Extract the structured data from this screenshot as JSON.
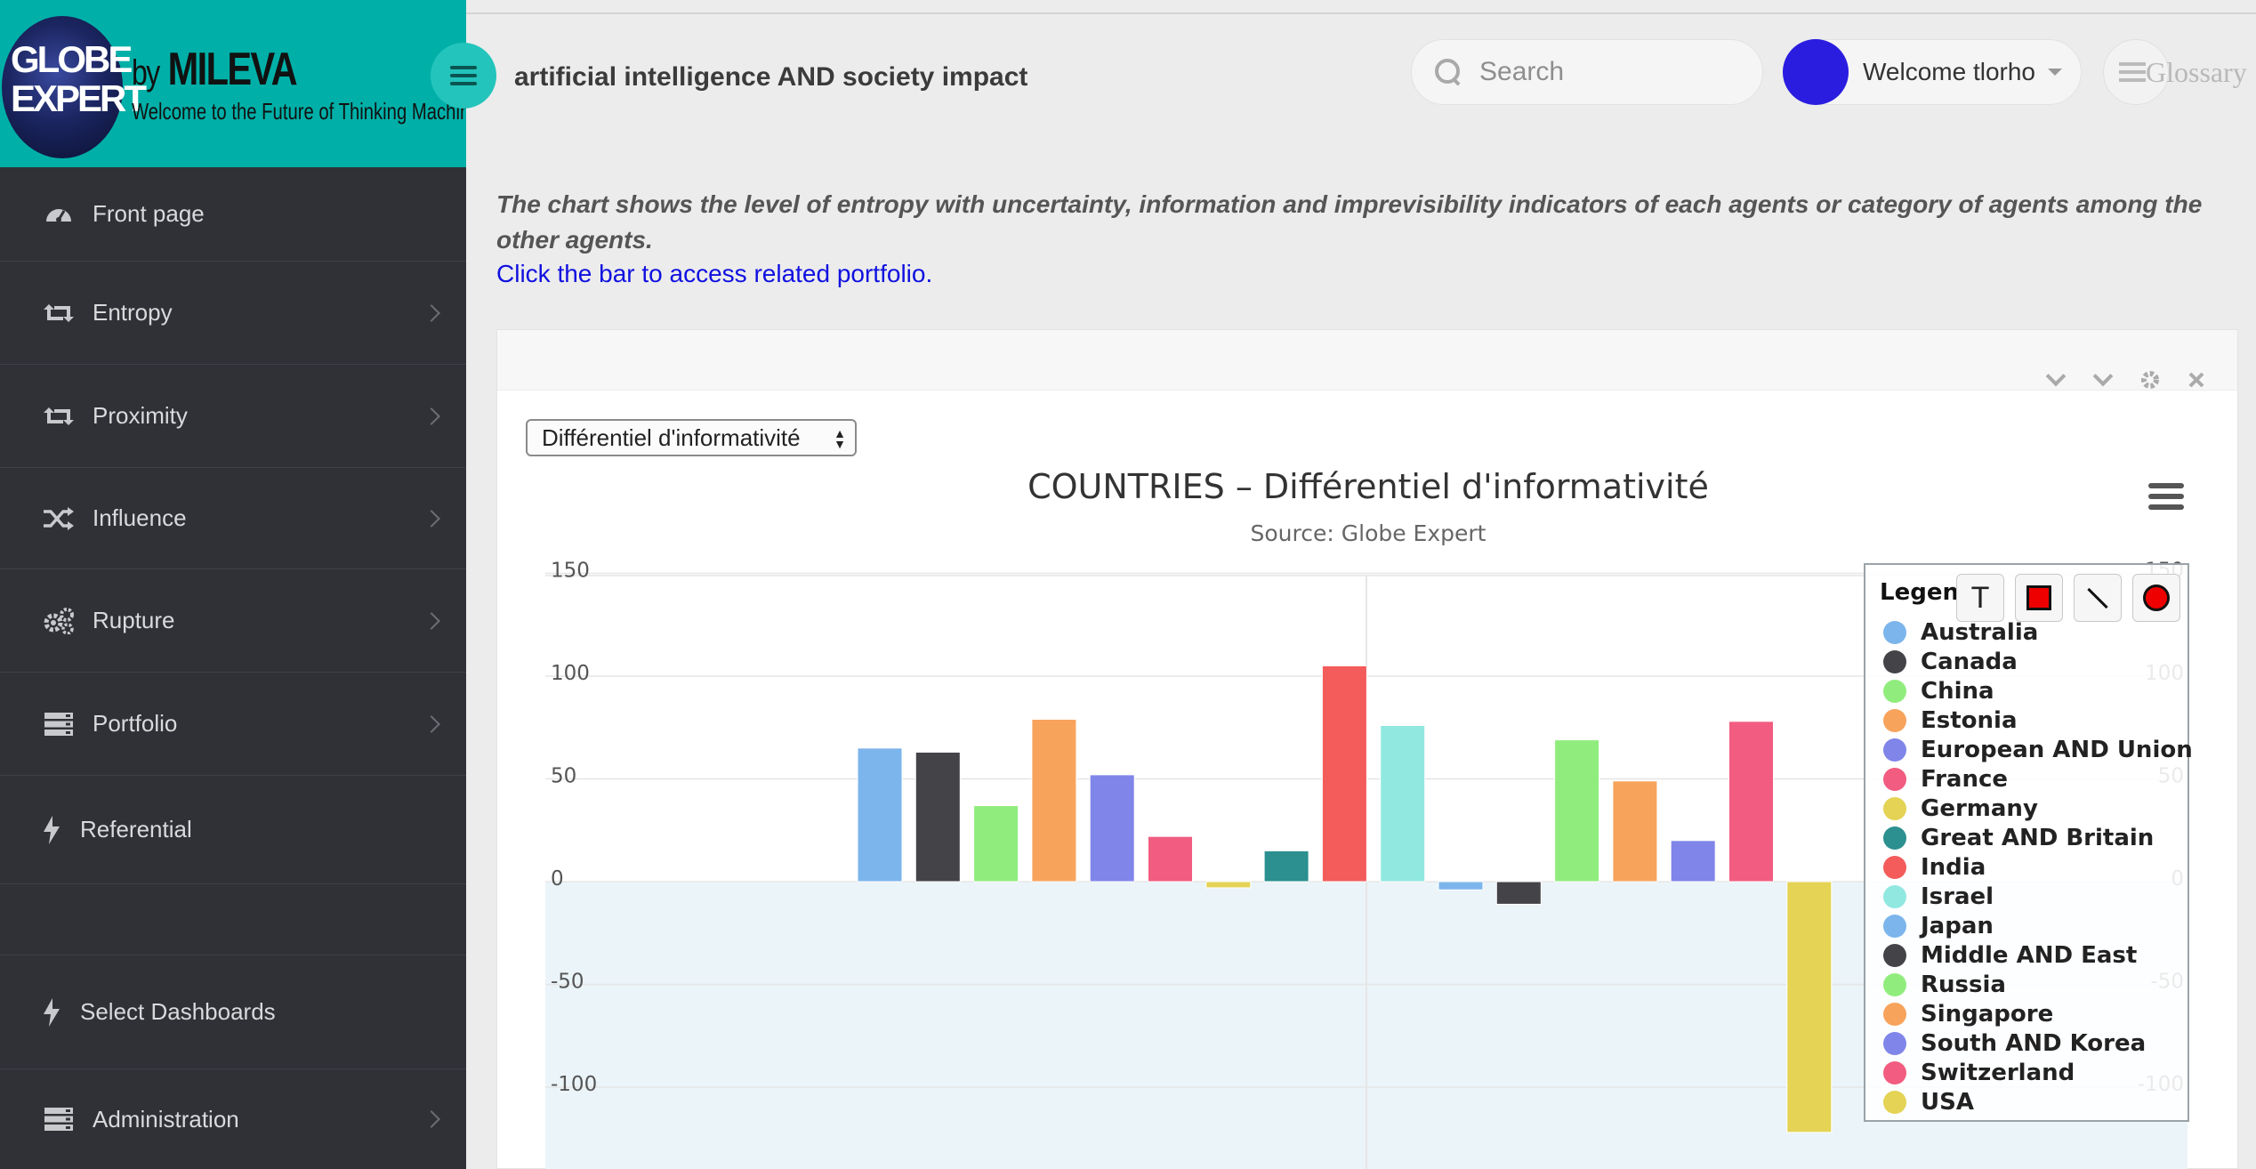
{
  "brand": {
    "logo_line1": "GLOBE",
    "logo_line2": "EXPERT",
    "by": "by",
    "name": "MILEVA",
    "tagline": "Welcome to the Future of Thinking Machines"
  },
  "sidebar": {
    "items": [
      {
        "label": "Front page",
        "icon": "dashboard-icon",
        "chevron": false
      },
      {
        "label": "Entropy",
        "icon": "retweet-icon",
        "chevron": true
      },
      {
        "label": "Proximity",
        "icon": "retweet-icon",
        "chevron": true
      },
      {
        "label": "Influence",
        "icon": "shuffle-icon",
        "chevron": true
      },
      {
        "label": "Rupture",
        "icon": "gears-icon",
        "chevron": true
      },
      {
        "label": "Portfolio",
        "icon": "server-icon",
        "chevron": true
      },
      {
        "label": "Referential",
        "icon": "bolt-icon",
        "chevron": false
      },
      {
        "label": "Select Dashboards",
        "icon": "bolt-icon",
        "chevron": false
      },
      {
        "label": "Administration",
        "icon": "server-icon",
        "chevron": true
      }
    ]
  },
  "header": {
    "title": "artificial intelligence AND society impact",
    "search_placeholder": "Search",
    "welcome": "Welcome tlorho",
    "glossary": "Glossary"
  },
  "description": {
    "text": "The chart shows the level of entropy with uncertainty, information and imprevisibility indicators of each agents or category of agents among the other agents.",
    "link": "Click the bar to access related portfolio."
  },
  "panel": {
    "select_value": "Différentiel d'informativité"
  },
  "legend_title": "Legend",
  "chart_data": {
    "type": "bar",
    "title": "COUNTRIES – Différentiel d'informativité",
    "subtitle": "Source: Globe Expert",
    "xlabel": "",
    "ylabel": "",
    "ylim": [
      -150,
      150
    ],
    "yticks_left": [
      "150",
      "100",
      "50",
      "0",
      "-50",
      "-100"
    ],
    "yticks_right": [
      "150",
      "100",
      "50",
      "0",
      "-50",
      "-100"
    ],
    "legend_position": "right",
    "grid": true,
    "series": [
      {
        "name": "Australia",
        "color": "#7cb5ec",
        "value": 65
      },
      {
        "name": "Canada",
        "color": "#434348",
        "value": 63
      },
      {
        "name": "China",
        "color": "#90ed7d",
        "value": 37
      },
      {
        "name": "Estonia",
        "color": "#f7a35c",
        "value": 79
      },
      {
        "name": "European AND Union",
        "color": "#8085e9",
        "value": 52
      },
      {
        "name": "France",
        "color": "#f15c80",
        "value": 22
      },
      {
        "name": "Germany",
        "color": "#e4d354",
        "value": -3
      },
      {
        "name": "Great AND Britain",
        "color": "#2b908f",
        "value": 15
      },
      {
        "name": "India",
        "color": "#f45b5b",
        "value": 105
      },
      {
        "name": "Israel",
        "color": "#91e8e1",
        "value": 76
      },
      {
        "name": "Japan",
        "color": "#7cb5ec",
        "value": -4
      },
      {
        "name": "Middle AND East",
        "color": "#434348",
        "value": -11
      },
      {
        "name": "Russia",
        "color": "#90ed7d",
        "value": 69
      },
      {
        "name": "Singapore",
        "color": "#f7a35c",
        "value": 49
      },
      {
        "name": "South AND Korea",
        "color": "#8085e9",
        "value": 20
      },
      {
        "name": "Switzerland",
        "color": "#f15c80",
        "value": 78
      },
      {
        "name": "USA",
        "color": "#e4d354",
        "value": -122
      }
    ]
  }
}
